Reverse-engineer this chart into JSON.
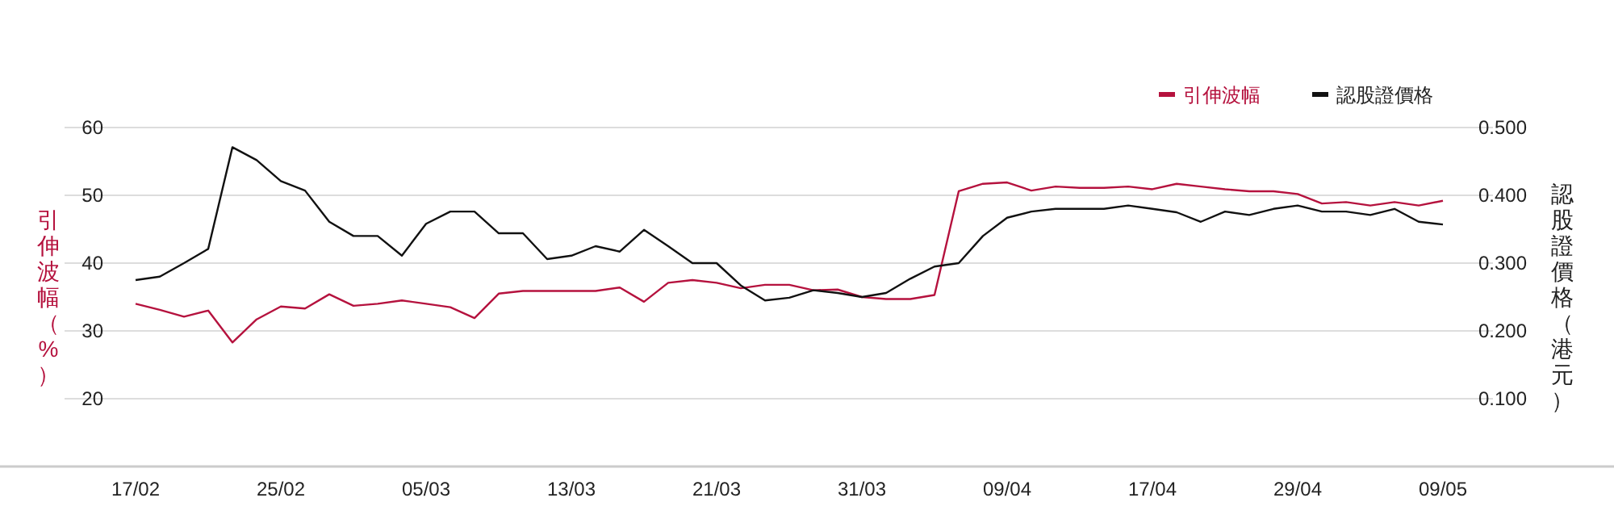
{
  "chart_data": {
    "type": "line",
    "categories": [
      "17/02",
      null,
      null,
      null,
      null,
      null,
      "25/02",
      null,
      null,
      null,
      null,
      null,
      "05/03",
      null,
      null,
      null,
      null,
      null,
      "13/03",
      null,
      null,
      null,
      null,
      null,
      "21/03",
      null,
      null,
      null,
      null,
      null,
      "31/03",
      null,
      null,
      null,
      null,
      null,
      "09/04",
      null,
      null,
      null,
      null,
      null,
      "17/04",
      null,
      null,
      null,
      null,
      null,
      "29/04",
      null,
      null,
      null,
      null,
      null,
      "09/05"
    ],
    "series": [
      {
        "name": "引伸波幅",
        "color": "#b5123e",
        "values": [
          34.0,
          33.1,
          32.1,
          33.0,
          28.3,
          31.7,
          33.6,
          33.3,
          35.4,
          33.7,
          34.0,
          34.5,
          34.0,
          33.5,
          31.9,
          35.5,
          35.9,
          35.9,
          35.9,
          35.9,
          36.4,
          34.3,
          37.1,
          37.5,
          37.1,
          36.3,
          36.8,
          36.8,
          36.0,
          36.1,
          35.0,
          34.7,
          34.7,
          35.3,
          50.6,
          51.7,
          51.9,
          50.7,
          51.3,
          51.1,
          51.1,
          51.3,
          50.9,
          51.7,
          51.3,
          50.9,
          50.6,
          50.6,
          50.2,
          48.8,
          49.0,
          48.5,
          49.0,
          48.5,
          49.2
        ]
      },
      {
        "name": "認股證價格",
        "color": "#111111",
        "axis": "y2",
        "values": [
          0.275,
          0.28,
          0.3,
          0.321,
          0.471,
          0.452,
          0.421,
          0.407,
          0.361,
          0.34,
          0.34,
          0.311,
          0.358,
          0.376,
          0.376,
          0.344,
          0.344,
          0.306,
          0.311,
          0.325,
          0.317,
          0.349,
          0.325,
          0.3,
          0.3,
          0.267,
          0.245,
          0.249,
          0.26,
          0.256,
          0.25,
          0.256,
          0.277,
          0.295,
          0.3,
          0.34,
          0.367,
          0.376,
          0.38,
          0.38,
          0.38,
          0.385,
          0.38,
          0.375,
          0.361,
          0.376,
          0.371,
          0.38,
          0.385,
          0.376,
          0.376,
          0.371,
          0.38,
          0.361,
          0.357
        ]
      }
    ],
    "ylabel": "引伸波幅（%）",
    "y2label": "認股證價格（港元）",
    "ylim": [
      10,
      60
    ],
    "yticks": [
      20,
      30,
      40,
      50,
      60
    ],
    "y2lim": [
      0,
      0.5
    ],
    "y2ticks": [
      {
        "value": 0.1,
        "label": "0.100"
      },
      {
        "value": 0.2,
        "label": "0.200"
      },
      {
        "value": 0.3,
        "label": "0.300"
      },
      {
        "value": 0.4,
        "label": "0.400"
      },
      {
        "value": 0.5,
        "label": "0.500"
      }
    ],
    "grid": "y",
    "legend": "top right"
  }
}
